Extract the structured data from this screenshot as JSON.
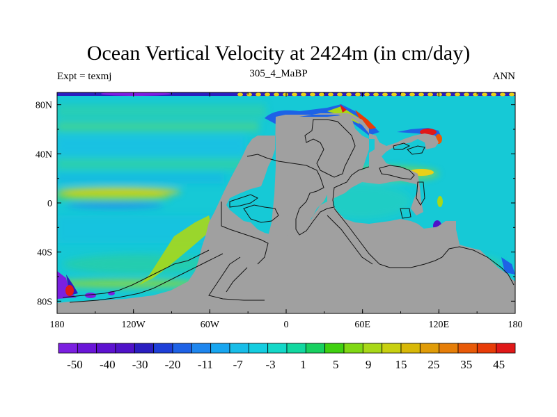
{
  "title": "Ocean Vertical Velocity at 2424m (in cm/day)",
  "subtitle": "305_4_MaBP",
  "left_label": "Expt = texmj",
  "right_label": "ANN",
  "map": {
    "lon_range": [
      -180,
      180
    ],
    "lat_range": [
      -90,
      90
    ],
    "land_color": "#a0a0a0",
    "ocean_background_color": "#16c9d6",
    "x_ticks": [
      {
        "lon": -180,
        "label": "180"
      },
      {
        "lon": -120,
        "label": "120W"
      },
      {
        "lon": -60,
        "label": "60W"
      },
      {
        "lon": 0,
        "label": "0"
      },
      {
        "lon": 60,
        "label": "60E"
      },
      {
        "lon": 120,
        "label": "120E"
      },
      {
        "lon": 180,
        "label": "180"
      }
    ],
    "y_ticks": [
      {
        "lat": 80,
        "label": "80N"
      },
      {
        "lat": 40,
        "label": "40N"
      },
      {
        "lat": 0,
        "label": "0"
      },
      {
        "lat": -40,
        "label": "40S"
      },
      {
        "lat": -80,
        "label": "80S"
      }
    ]
  },
  "colorbar": {
    "colors": [
      "#7b1fe0",
      "#6a16d8",
      "#5d12d0",
      "#4f12c8",
      "#2a1ec0",
      "#1e3fd8",
      "#1e62e6",
      "#1e86ee",
      "#18a6f0",
      "#18bde8",
      "#14cde0",
      "#14d8c8",
      "#12d8a0",
      "#18d060",
      "#40d010",
      "#80d814",
      "#a8d818",
      "#c8d010",
      "#d8b808",
      "#e09c08",
      "#e67e08",
      "#e85a08",
      "#e83c08",
      "#e01818"
    ],
    "labels": [
      {
        "index": 1,
        "text": "-50"
      },
      {
        "index": 3,
        "text": "-40"
      },
      {
        "index": 5,
        "text": "-30"
      },
      {
        "index": 7,
        "text": "-20"
      },
      {
        "index": 9,
        "text": "-11"
      },
      {
        "index": 11,
        "text": "-7"
      },
      {
        "index": 13,
        "text": "-3"
      },
      {
        "index": 15,
        "text": "1"
      },
      {
        "index": 17,
        "text": "5"
      },
      {
        "index": 19,
        "text": "9"
      },
      {
        "index": 21,
        "text": "15"
      },
      {
        "index": 23,
        "text": "25"
      },
      {
        "index": 25,
        "text": "35"
      },
      {
        "index": 27,
        "text": "45"
      }
    ]
  }
}
